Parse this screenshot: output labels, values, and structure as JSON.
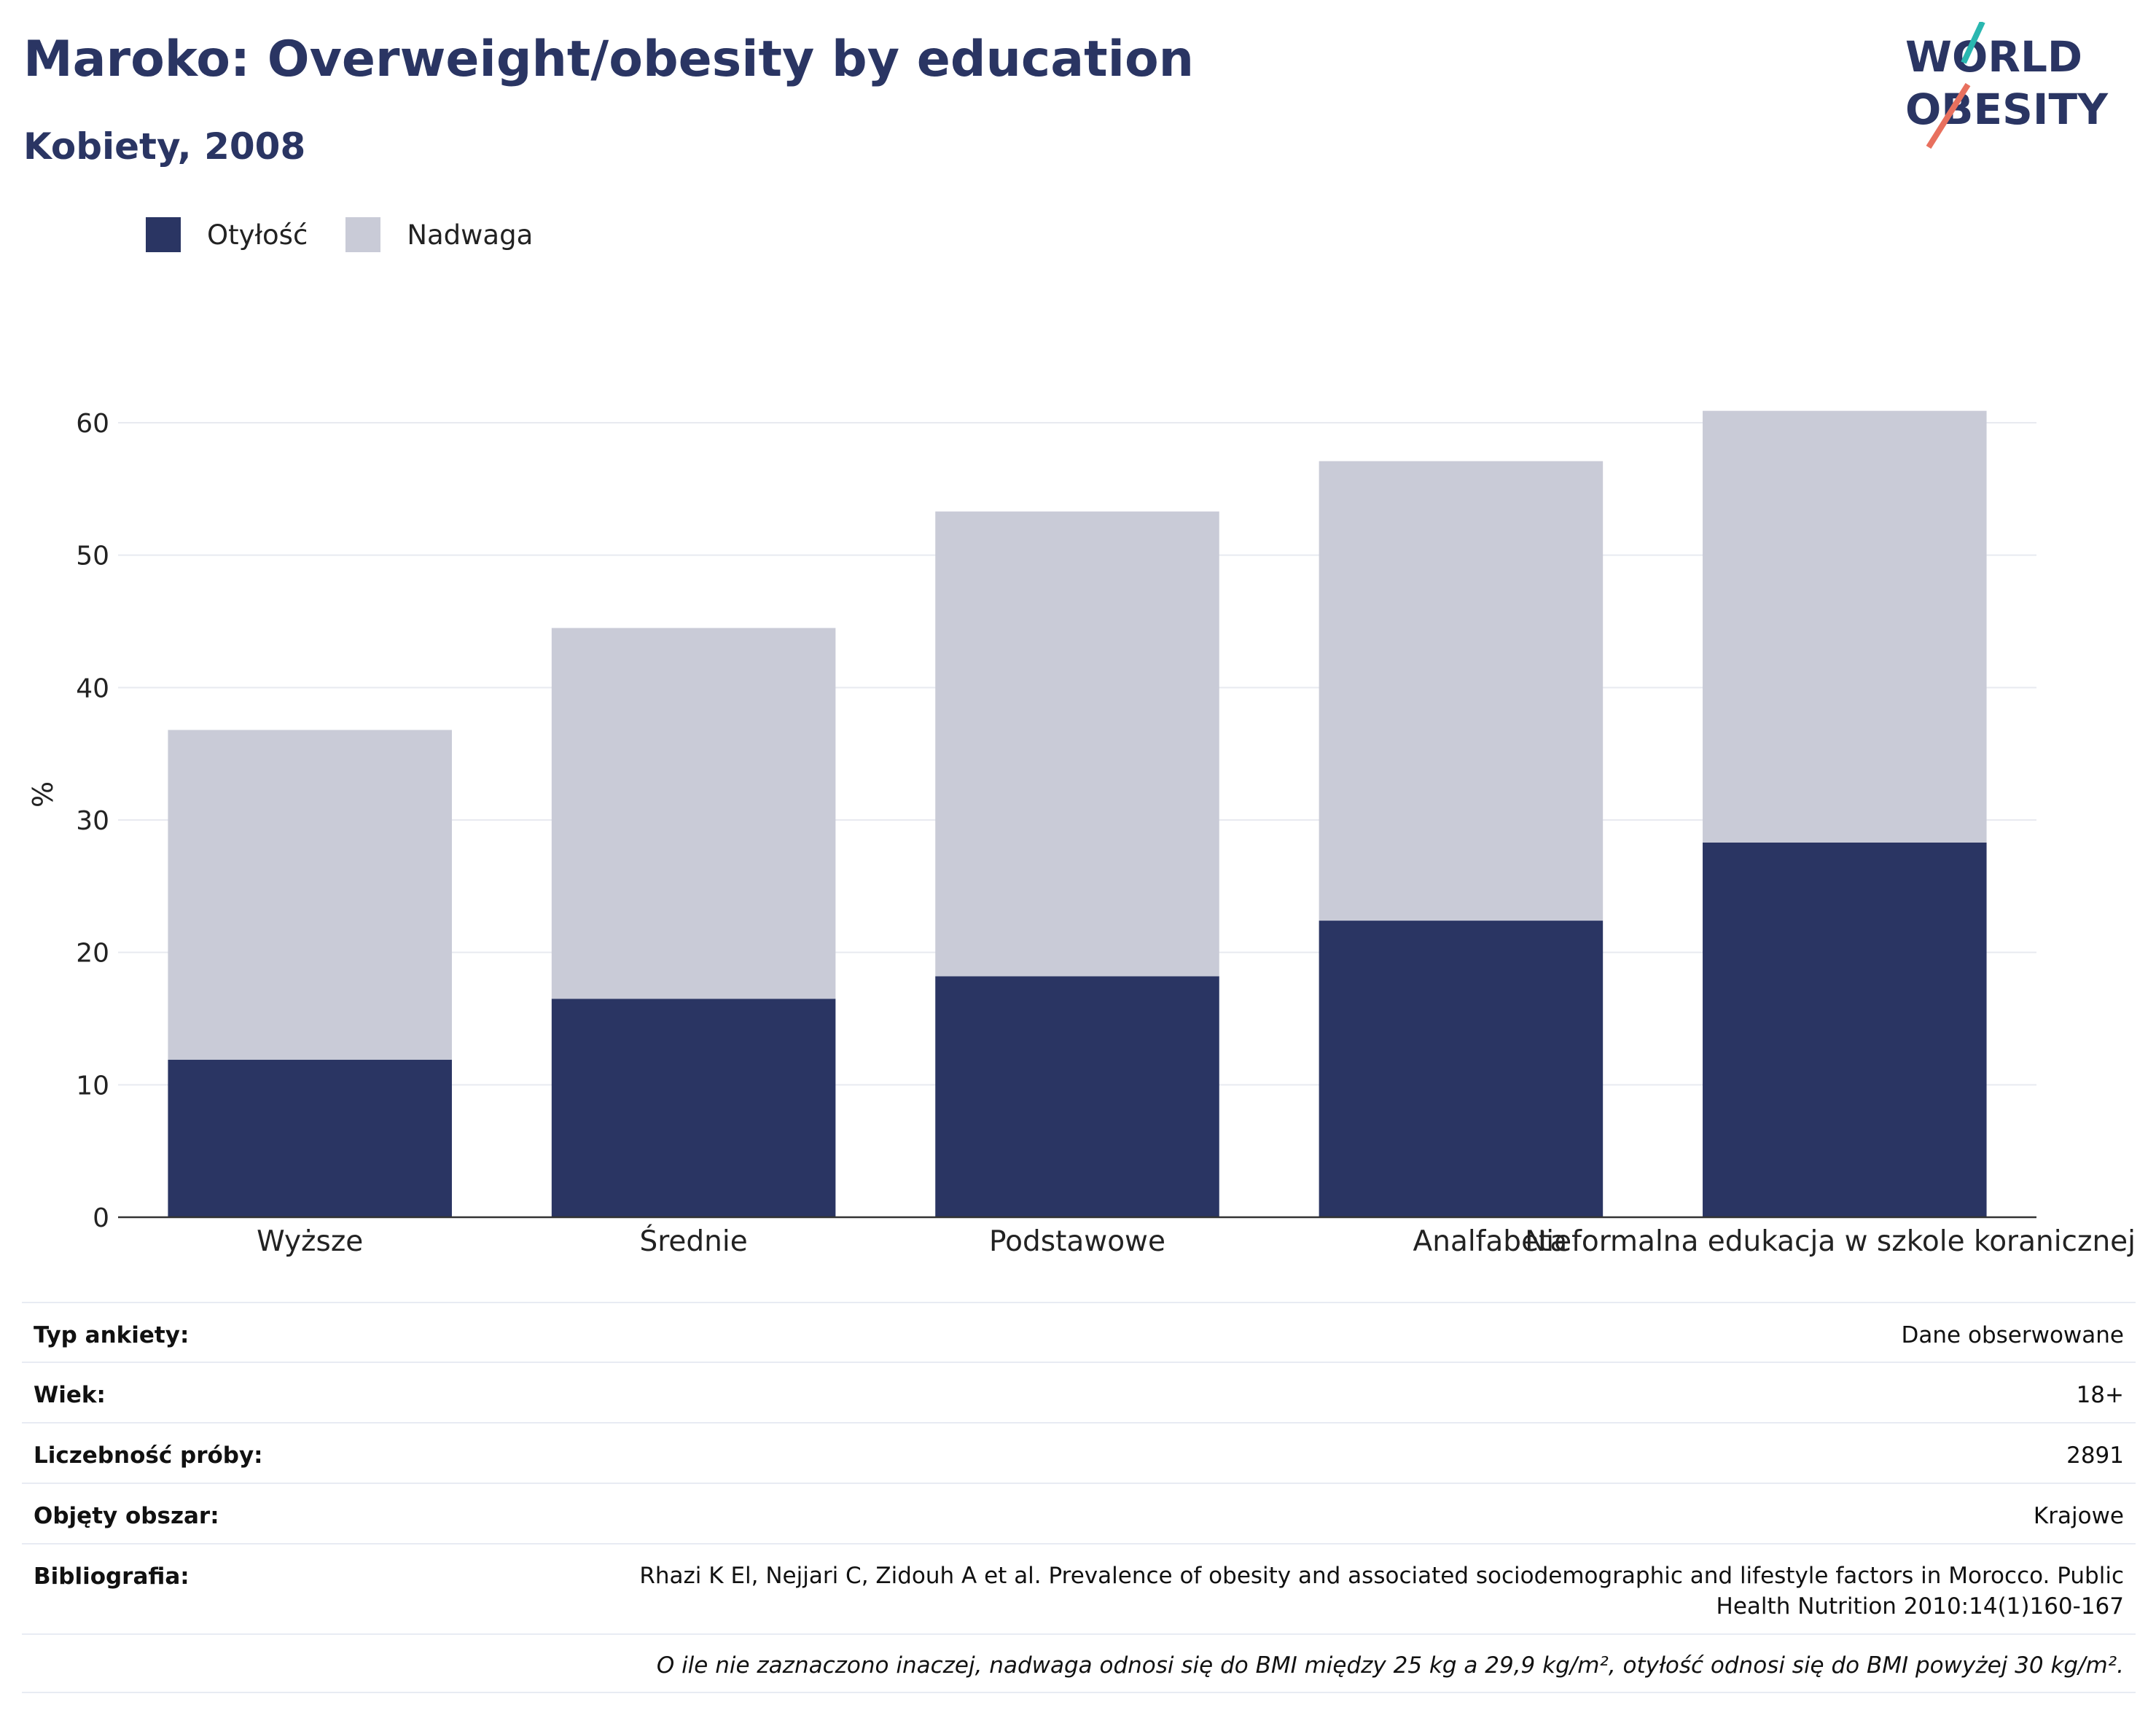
{
  "header": {
    "title": "Maroko: Overweight/obesity by education",
    "subtitle": "Kobiety, 2008"
  },
  "logo": {
    "line1": "WORLD",
    "line2": "OBESITY"
  },
  "colors": {
    "obesity": "#2a3563",
    "overweight": "#c9cbd7",
    "text": "#2a3563",
    "logo_teal": "#2ab7b0",
    "logo_coral": "#e8705e"
  },
  "chart_data": {
    "type": "bar",
    "stacked": true,
    "categories": [
      "Wyższe",
      "Średnie",
      "Podstawowe",
      "Analfabeta",
      "Nieformalna edukacja w szkole koranicznej"
    ],
    "series": [
      {
        "name": "Otyłość",
        "values": [
          11.9,
          16.5,
          18.2,
          22.4,
          28.3
        ]
      },
      {
        "name": "Nadwaga",
        "values": [
          24.9,
          28.0,
          35.1,
          34.7,
          32.6
        ]
      }
    ],
    "ylabel": "%",
    "xlabel": "",
    "ylim": [
      0,
      60
    ],
    "yticks": [
      0,
      10,
      20,
      30,
      40,
      50,
      60
    ],
    "grid": true,
    "legend_position": "top-left"
  },
  "info": {
    "rows": [
      {
        "label": "Typ ankiety:",
        "value": "Dane obserwowane"
      },
      {
        "label": "Wiek:",
        "value": "18+"
      },
      {
        "label": "Liczebność próby:",
        "value": "2891"
      },
      {
        "label": "Objęty obszar:",
        "value": "Krajowe"
      },
      {
        "label": "Bibliografia:",
        "value": "Rhazi K El, Nejjari C, Zidouh A et al. Prevalence of obesity and associated sociodemographic and lifestyle factors in Morocco. Public Health Nutrition 2010:14(1)160-167"
      }
    ],
    "note": "O ile nie zaznaczono inaczej, nadwaga odnosi się do BMI między 25 kg a 29,9 kg/m², otyłość odnosi się do BMI powyżej 30 kg/m²."
  }
}
